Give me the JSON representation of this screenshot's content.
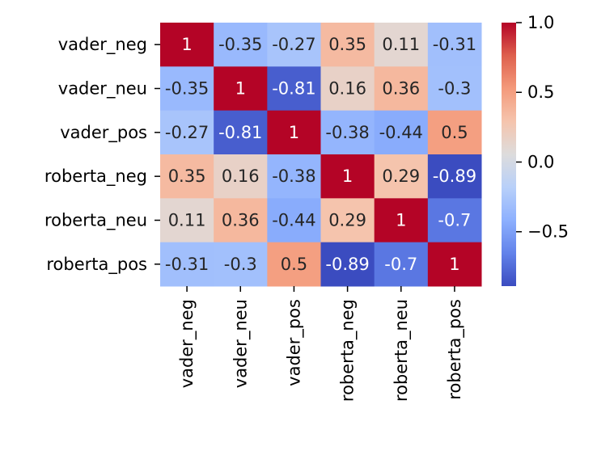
{
  "chart_data": {
    "type": "heatmap",
    "title": "",
    "xlabel": "",
    "ylabel": "",
    "colormap": "coolwarm",
    "vmin": -0.89,
    "vmax": 1.0,
    "x_categories": [
      "vader_neg",
      "vader_neu",
      "vader_pos",
      "roberta_neg",
      "roberta_neu",
      "roberta_pos"
    ],
    "y_categories": [
      "vader_neg",
      "vader_neu",
      "vader_pos",
      "roberta_neg",
      "roberta_neu",
      "roberta_pos"
    ],
    "matrix": [
      [
        1,
        -0.35,
        -0.27,
        0.35,
        0.11,
        -0.31
      ],
      [
        -0.35,
        1,
        -0.81,
        0.16,
        0.36,
        -0.3
      ],
      [
        -0.27,
        -0.81,
        1,
        -0.38,
        -0.44,
        0.5
      ],
      [
        0.35,
        0.16,
        -0.38,
        1,
        0.29,
        -0.89
      ],
      [
        0.11,
        0.36,
        -0.44,
        0.29,
        1,
        -0.7
      ],
      [
        -0.31,
        -0.3,
        0.5,
        -0.89,
        -0.7,
        1
      ]
    ],
    "annotations": [
      [
        "1",
        "-0.35",
        "-0.27",
        "0.35",
        "0.11",
        "-0.31"
      ],
      [
        "-0.35",
        "1",
        "-0.81",
        "0.16",
        "0.36",
        "-0.3"
      ],
      [
        "-0.27",
        "-0.81",
        "1",
        "-0.38",
        "-0.44",
        "0.5"
      ],
      [
        "0.35",
        "0.16",
        "-0.38",
        "1",
        "0.29",
        "-0.89"
      ],
      [
        "0.11",
        "0.36",
        "-0.44",
        "0.29",
        "1",
        "-0.7"
      ],
      [
        "-0.31",
        "-0.3",
        "0.5",
        "-0.89",
        "-0.7",
        "1"
      ]
    ],
    "colorbar": {
      "ticks": [
        1.0,
        0.5,
        0.0,
        -0.5
      ],
      "tick_labels": [
        "1.0",
        "0.5",
        "0.0",
        "−0.5"
      ]
    },
    "grid": false,
    "legend": "colorbar-right"
  }
}
